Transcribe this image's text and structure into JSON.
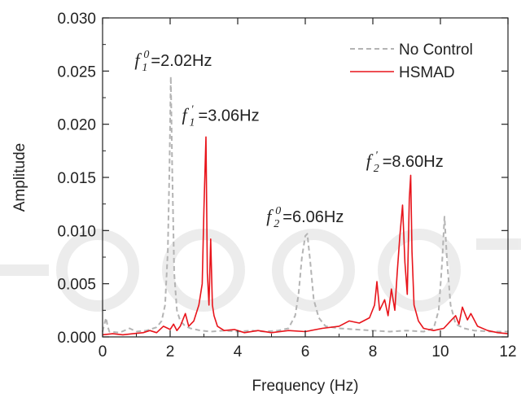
{
  "chart_data": {
    "type": "line",
    "xlabel": "Frequency (Hz)",
    "ylabel": "Amplitude",
    "xlim": [
      0,
      12
    ],
    "ylim": [
      0,
      0.03
    ],
    "xticks": [
      "0",
      "2",
      "4",
      "6",
      "8",
      "10",
      "12"
    ],
    "yticks": [
      "0.000",
      "0.005",
      "0.010",
      "0.015",
      "0.020",
      "0.025",
      "0.030"
    ],
    "grid": false,
    "legend_position": "top-right",
    "series": [
      {
        "name": "No Control",
        "style": "dashed",
        "color": "#b4b4b4",
        "points": [
          [
            0.0,
            0.0005
          ],
          [
            0.1,
            0.0018
          ],
          [
            0.15,
            0.001
          ],
          [
            0.2,
            0.0005
          ],
          [
            0.5,
            0.0004
          ],
          [
            0.8,
            0.0008
          ],
          [
            1.0,
            0.0005
          ],
          [
            1.3,
            0.0006
          ],
          [
            1.6,
            0.0009
          ],
          [
            1.75,
            0.0015
          ],
          [
            1.85,
            0.003
          ],
          [
            1.93,
            0.008
          ],
          [
            1.98,
            0.016
          ],
          [
            2.02,
            0.0245
          ],
          [
            2.06,
            0.016
          ],
          [
            2.12,
            0.006
          ],
          [
            2.2,
            0.0025
          ],
          [
            2.3,
            0.0015
          ],
          [
            2.45,
            0.001
          ],
          [
            2.6,
            0.0008
          ],
          [
            2.9,
            0.0006
          ],
          [
            3.2,
            0.0005
          ],
          [
            3.6,
            0.0006
          ],
          [
            4.0,
            0.0005
          ],
          [
            4.4,
            0.0006
          ],
          [
            4.8,
            0.0005
          ],
          [
            5.2,
            0.0006
          ],
          [
            5.5,
            0.0008
          ],
          [
            5.7,
            0.002
          ],
          [
            5.8,
            0.004
          ],
          [
            5.9,
            0.0075
          ],
          [
            6.0,
            0.0095
          ],
          [
            6.06,
            0.0097
          ],
          [
            6.15,
            0.007
          ],
          [
            6.25,
            0.0035
          ],
          [
            6.4,
            0.0018
          ],
          [
            6.6,
            0.001
          ],
          [
            7.0,
            0.0008
          ],
          [
            7.5,
            0.0007
          ],
          [
            8.0,
            0.0006
          ],
          [
            8.5,
            0.0005
          ],
          [
            9.0,
            0.0006
          ],
          [
            9.5,
            0.0005
          ],
          [
            9.8,
            0.0008
          ],
          [
            9.95,
            0.0025
          ],
          [
            10.05,
            0.007
          ],
          [
            10.12,
            0.0113
          ],
          [
            10.2,
            0.007
          ],
          [
            10.3,
            0.003
          ],
          [
            10.45,
            0.0012
          ],
          [
            10.7,
            0.0008
          ],
          [
            11.0,
            0.0006
          ],
          [
            11.5,
            0.0005
          ],
          [
            12.0,
            0.0005
          ]
        ]
      },
      {
        "name": "HSMAD",
        "style": "solid",
        "color": "#e8141b",
        "points": [
          [
            0.0,
            0.0002
          ],
          [
            0.3,
            0.0003
          ],
          [
            0.6,
            0.0002
          ],
          [
            0.9,
            0.0003
          ],
          [
            1.2,
            0.0004
          ],
          [
            1.4,
            0.0006
          ],
          [
            1.6,
            0.0004
          ],
          [
            1.8,
            0.001
          ],
          [
            2.0,
            0.0007
          ],
          [
            2.1,
            0.0012
          ],
          [
            2.2,
            0.0006
          ],
          [
            2.3,
            0.001
          ],
          [
            2.45,
            0.0022
          ],
          [
            2.55,
            0.001
          ],
          [
            2.7,
            0.0015
          ],
          [
            2.85,
            0.003
          ],
          [
            2.95,
            0.005
          ],
          [
            3.0,
            0.012
          ],
          [
            3.06,
            0.0188
          ],
          [
            3.1,
            0.006
          ],
          [
            3.15,
            0.003
          ],
          [
            3.2,
            0.0092
          ],
          [
            3.25,
            0.003
          ],
          [
            3.3,
            0.002
          ],
          [
            3.4,
            0.001
          ],
          [
            3.6,
            0.0006
          ],
          [
            3.9,
            0.0007
          ],
          [
            4.2,
            0.0004
          ],
          [
            4.6,
            0.0006
          ],
          [
            5.0,
            0.0004
          ],
          [
            5.5,
            0.0006
          ],
          [
            6.0,
            0.0005
          ],
          [
            6.5,
            0.0008
          ],
          [
            7.0,
            0.001
          ],
          [
            7.3,
            0.0015
          ],
          [
            7.6,
            0.0013
          ],
          [
            7.9,
            0.0018
          ],
          [
            8.05,
            0.003
          ],
          [
            8.12,
            0.0052
          ],
          [
            8.2,
            0.0025
          ],
          [
            8.35,
            0.0035
          ],
          [
            8.45,
            0.002
          ],
          [
            8.55,
            0.0045
          ],
          [
            8.65,
            0.0025
          ],
          [
            8.72,
            0.006
          ],
          [
            8.8,
            0.0095
          ],
          [
            8.88,
            0.0124
          ],
          [
            8.95,
            0.007
          ],
          [
            9.02,
            0.004
          ],
          [
            9.08,
            0.013
          ],
          [
            9.12,
            0.0152
          ],
          [
            9.16,
            0.008
          ],
          [
            9.22,
            0.003
          ],
          [
            9.35,
            0.0015
          ],
          [
            9.5,
            0.0008
          ],
          [
            9.8,
            0.0006
          ],
          [
            10.1,
            0.0008
          ],
          [
            10.3,
            0.0015
          ],
          [
            10.45,
            0.002
          ],
          [
            10.55,
            0.0012
          ],
          [
            10.65,
            0.0028
          ],
          [
            10.8,
            0.0016
          ],
          [
            10.9,
            0.0022
          ],
          [
            11.1,
            0.001
          ],
          [
            11.4,
            0.0006
          ],
          [
            11.7,
            0.0004
          ],
          [
            12.0,
            0.0003
          ]
        ]
      }
    ],
    "annotations": [
      {
        "x": 0.95,
        "y": 0.0255,
        "sym": "f",
        "sub": "1",
        "sup": "0",
        "text": "=2.02Hz"
      },
      {
        "x": 2.35,
        "y": 0.0203,
        "sym": "f",
        "sub": "1",
        "sup": "'",
        "text": "=3.06Hz"
      },
      {
        "x": 4.85,
        "y": 0.0108,
        "sym": "f",
        "sub": "2",
        "sup": "0",
        "text": "=6.06Hz"
      },
      {
        "x": 7.8,
        "y": 0.016,
        "sym": "f",
        "sub": "2",
        "sup": "'",
        "text": "=8.60Hz"
      }
    ]
  }
}
